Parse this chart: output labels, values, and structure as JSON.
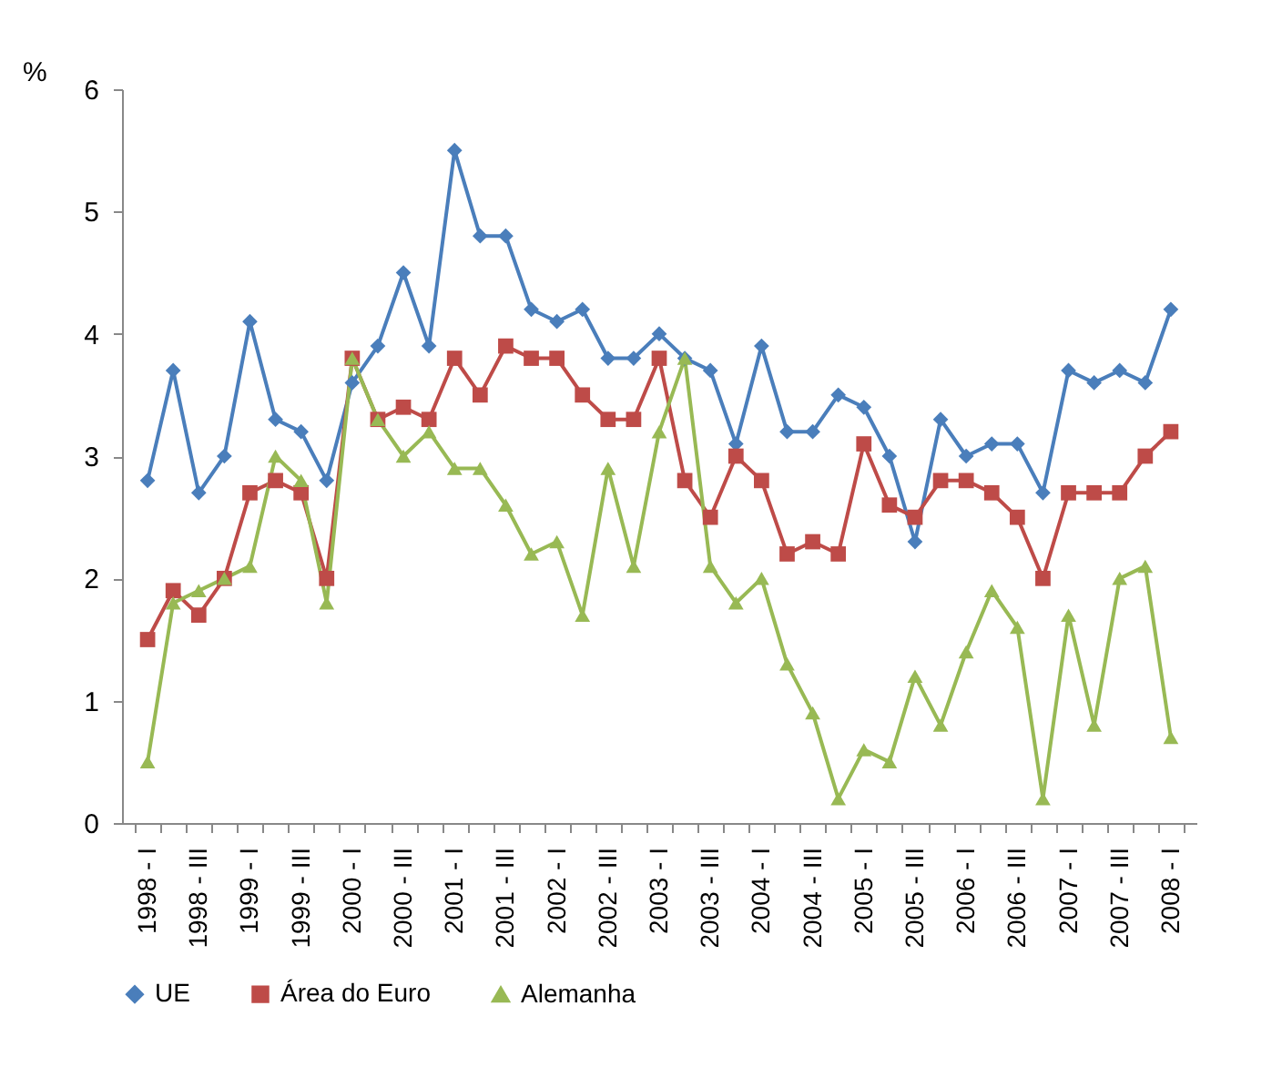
{
  "chart_data": {
    "type": "line",
    "ylabel": "%",
    "categories": [
      "1998 - I",
      null,
      "1998 - III",
      null,
      "1999 - I",
      null,
      "1999 - III",
      null,
      "2000 - I",
      null,
      "2000 - III",
      null,
      "2001 - I",
      null,
      "2001 - III",
      null,
      "2002 - I",
      null,
      "2002 - III",
      null,
      "2003 - I",
      null,
      "2003 - III",
      null,
      "2004 - I",
      null,
      "2004 - III",
      null,
      "2005 - I",
      null,
      "2005 - III",
      null,
      "2006 - I",
      null,
      "2006 - III",
      null,
      "2007 - I",
      null,
      "2007 - III",
      null,
      "2008 - I"
    ],
    "series": [
      {
        "name": "UE",
        "color": "#4a7ebb",
        "marker": "diamond",
        "values": [
          2.8,
          3.7,
          2.7,
          3.0,
          4.1,
          3.3,
          3.2,
          2.8,
          3.6,
          3.9,
          4.5,
          3.9,
          5.5,
          4.8,
          4.8,
          4.2,
          4.1,
          4.2,
          3.8,
          3.8,
          4.0,
          3.8,
          3.7,
          3.1,
          3.9,
          3.2,
          3.2,
          3.5,
          3.4,
          3.0,
          2.3,
          3.3,
          3.0,
          3.1,
          3.1,
          2.7,
          3.7,
          3.6,
          3.7,
          3.6,
          4.2
        ]
      },
      {
        "name": "Área do Euro",
        "color": "#be4b48",
        "marker": "square",
        "values": [
          1.5,
          1.9,
          1.7,
          2.0,
          2.7,
          2.8,
          2.7,
          2.0,
          3.8,
          3.3,
          3.4,
          3.3,
          3.8,
          3.5,
          3.9,
          3.8,
          3.8,
          3.5,
          3.3,
          3.3,
          3.8,
          2.8,
          2.5,
          3.0,
          2.8,
          2.2,
          2.3,
          2.2,
          3.1,
          2.6,
          2.5,
          2.8,
          2.8,
          2.7,
          2.5,
          2.0,
          2.7,
          2.7,
          2.7,
          3.0,
          3.2
        ]
      },
      {
        "name": "Alemanha",
        "color": "#98b954",
        "marker": "triangle",
        "values": [
          0.5,
          1.8,
          1.9,
          2.0,
          2.1,
          3.0,
          2.8,
          1.8,
          3.8,
          3.3,
          3.0,
          3.2,
          2.9,
          2.9,
          2.6,
          2.2,
          2.3,
          1.7,
          2.9,
          2.1,
          3.2,
          3.8,
          2.1,
          1.8,
          2.0,
          1.3,
          0.9,
          0.2,
          0.6,
          0.5,
          1.2,
          0.8,
          1.4,
          1.9,
          1.6,
          0.2,
          1.7,
          0.8,
          2.0,
          2.1,
          0.7
        ]
      }
    ],
    "ylim": [
      0,
      6
    ],
    "yticks": [
      0,
      1,
      2,
      3,
      4,
      5,
      6
    ],
    "grid": false,
    "legend": "bottom"
  }
}
